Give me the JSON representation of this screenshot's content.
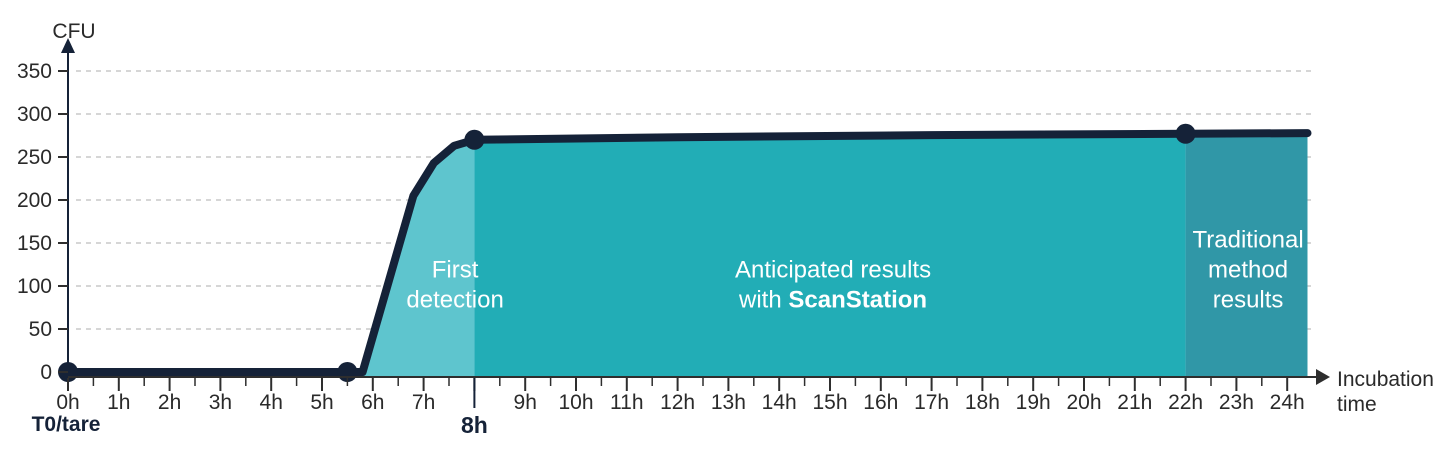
{
  "colors": {
    "background": "#ffffff",
    "line": "#152238",
    "marker": "#152238",
    "axis": "#2e2e2e",
    "tick_label": "#2a2a2a",
    "grid": "#c9c9c9",
    "dark_label": "#152238",
    "region_label_text": "#ffffff"
  },
  "chart_data": {
    "type": "area",
    "title": "",
    "ylabel": "CFU",
    "xlabel_lines": [
      "Incubation",
      "time"
    ],
    "origin_label": "T0/tare",
    "x_unit": "h",
    "x_ticks": [
      "0h",
      "1h",
      "2h",
      "3h",
      "4h",
      "5h",
      "6h",
      "7h",
      "8h",
      "9h",
      "10h",
      "11h",
      "12h",
      "13h",
      "14h",
      "15h",
      "16h",
      "17h",
      "18h",
      "19h",
      "20h",
      "21h",
      "22h",
      "23h",
      "24h"
    ],
    "highlight_tick": "8h",
    "y_ticks": [
      0,
      50,
      100,
      150,
      200,
      250,
      300,
      350
    ],
    "ylim": [
      0,
      380
    ],
    "xlim": [
      0,
      24.4
    ],
    "grid": {
      "dashed": true,
      "color": "#c9c9c9"
    },
    "series": [
      {
        "name": "CFU detection curve",
        "color": "#152238",
        "points": [
          [
            0,
            0
          ],
          [
            5.5,
            0
          ],
          [
            5.8,
            0
          ],
          [
            6.8,
            205
          ],
          [
            7.2,
            243
          ],
          [
            7.6,
            263
          ],
          [
            8,
            270
          ],
          [
            12,
            273
          ],
          [
            17,
            275.5
          ],
          [
            22,
            277
          ],
          [
            24.4,
            277.8
          ]
        ]
      }
    ],
    "markers": [
      [
        0,
        0
      ],
      [
        5.5,
        0
      ],
      [
        8,
        270
      ],
      [
        22,
        277
      ]
    ],
    "regions": [
      {
        "name": "first-detection",
        "x_start": 0,
        "x_end": 8,
        "fill": "#5EC5CE",
        "label": {
          "h": 7.62,
          "cfu": 102,
          "lines": [
            [
              {
                "text": "First"
              }
            ],
            [
              {
                "text": "detection"
              }
            ]
          ]
        }
      },
      {
        "name": "scanstation-results",
        "x_start": 8,
        "x_end": 22,
        "fill": "#22ADB6",
        "label": {
          "h": 15.06,
          "cfu": 102,
          "lines": [
            [
              {
                "text": "Anticipated results"
              }
            ],
            [
              {
                "text": "with "
              },
              {
                "text": "ScanStation",
                "bold": true
              }
            ]
          ]
        }
      },
      {
        "name": "traditional-results",
        "x_start": 22,
        "x_end": 24.4,
        "fill": "#3097A7",
        "label": {
          "h": 23.23,
          "cfu": 119,
          "lines": [
            [
              {
                "text": "Traditional"
              }
            ],
            [
              {
                "text": "method"
              }
            ],
            [
              {
                "text": "results"
              }
            ]
          ]
        }
      }
    ]
  }
}
